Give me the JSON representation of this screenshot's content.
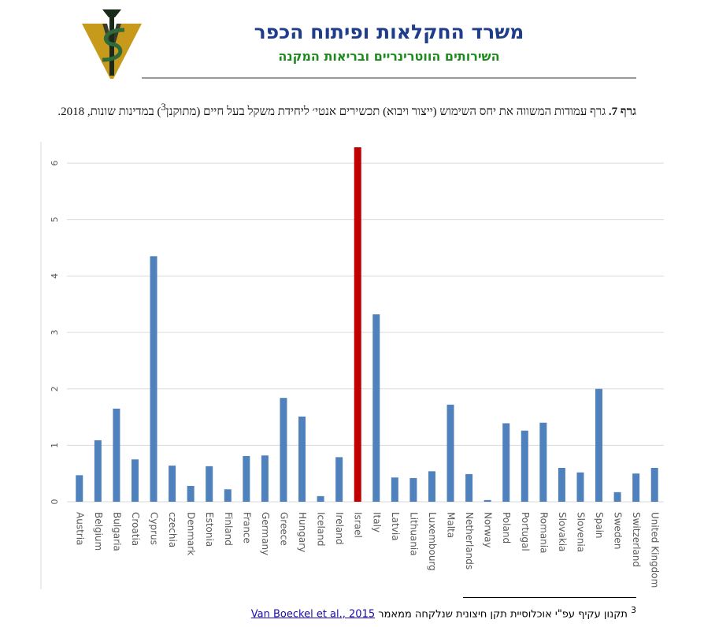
{
  "header": {
    "title": "משרד החקלאות ופיתוח הכפר",
    "subtitle": "השירותים הווטרינריים ובריאות המקנה"
  },
  "caption": {
    "label": "גרף 7.",
    "text_before": "גרף עמודות המשווה את יחס השימוש (ייצור ויבוא) תכשירים אנטי׳ ליחידת משקל בעל חיים (מתוקנן",
    "footnote_ref": "3",
    "text_after": ") במדינות שונות, 2018."
  },
  "chart_data": {
    "type": "bar",
    "categories": [
      "Austria",
      "Belgium",
      "Bulgaria",
      "Croatia",
      "Cyprus",
      "czechia",
      "Denmark",
      "Estonia",
      "Finland",
      "France",
      "Germany",
      "Greece",
      "Hungary",
      "Iceland",
      "Ireland",
      "Israel",
      "Italy",
      "Latvia",
      "Lithuania",
      "Luxembourg",
      "Malta",
      "Netherlands",
      "Norway",
      "Poland",
      "Portugal",
      "Romania",
      "Slovakia",
      "Slovenia",
      "Spain",
      "Sweden",
      "Switzerland",
      "United Kingdom"
    ],
    "values": [
      0.47,
      1.09,
      1.65,
      0.75,
      4.35,
      0.64,
      0.28,
      0.63,
      0.22,
      0.81,
      0.82,
      1.84,
      1.51,
      0.1,
      0.79,
      6.28,
      3.32,
      0.43,
      0.42,
      0.54,
      1.72,
      0.49,
      0.03,
      1.39,
      1.26,
      1.4,
      0.6,
      0.52,
      2.0,
      0.17,
      0.5,
      0.6
    ],
    "colors": [
      "#4f81bd",
      "#4f81bd",
      "#4f81bd",
      "#4f81bd",
      "#4f81bd",
      "#4f81bd",
      "#4f81bd",
      "#4f81bd",
      "#4f81bd",
      "#4f81bd",
      "#4f81bd",
      "#4f81bd",
      "#4f81bd",
      "#4f81bd",
      "#4f81bd",
      "#c00000",
      "#4f81bd",
      "#4f81bd",
      "#4f81bd",
      "#4f81bd",
      "#4f81bd",
      "#4f81bd",
      "#4f81bd",
      "#4f81bd",
      "#4f81bd",
      "#4f81bd",
      "#4f81bd",
      "#4f81bd",
      "#4f81bd",
      "#4f81bd",
      "#4f81bd",
      "#4f81bd"
    ],
    "ylim": [
      0,
      6.28
    ],
    "yticks": [
      0,
      1,
      2,
      3,
      4,
      5,
      6
    ],
    "grid": true
  },
  "footnote": {
    "number": "3",
    "text": "תקנון עקיף עפ\"י אוכלוסיית תקן חיצונית שנלקחה ממאמר",
    "link": "Van Boeckel et al., 2015"
  }
}
